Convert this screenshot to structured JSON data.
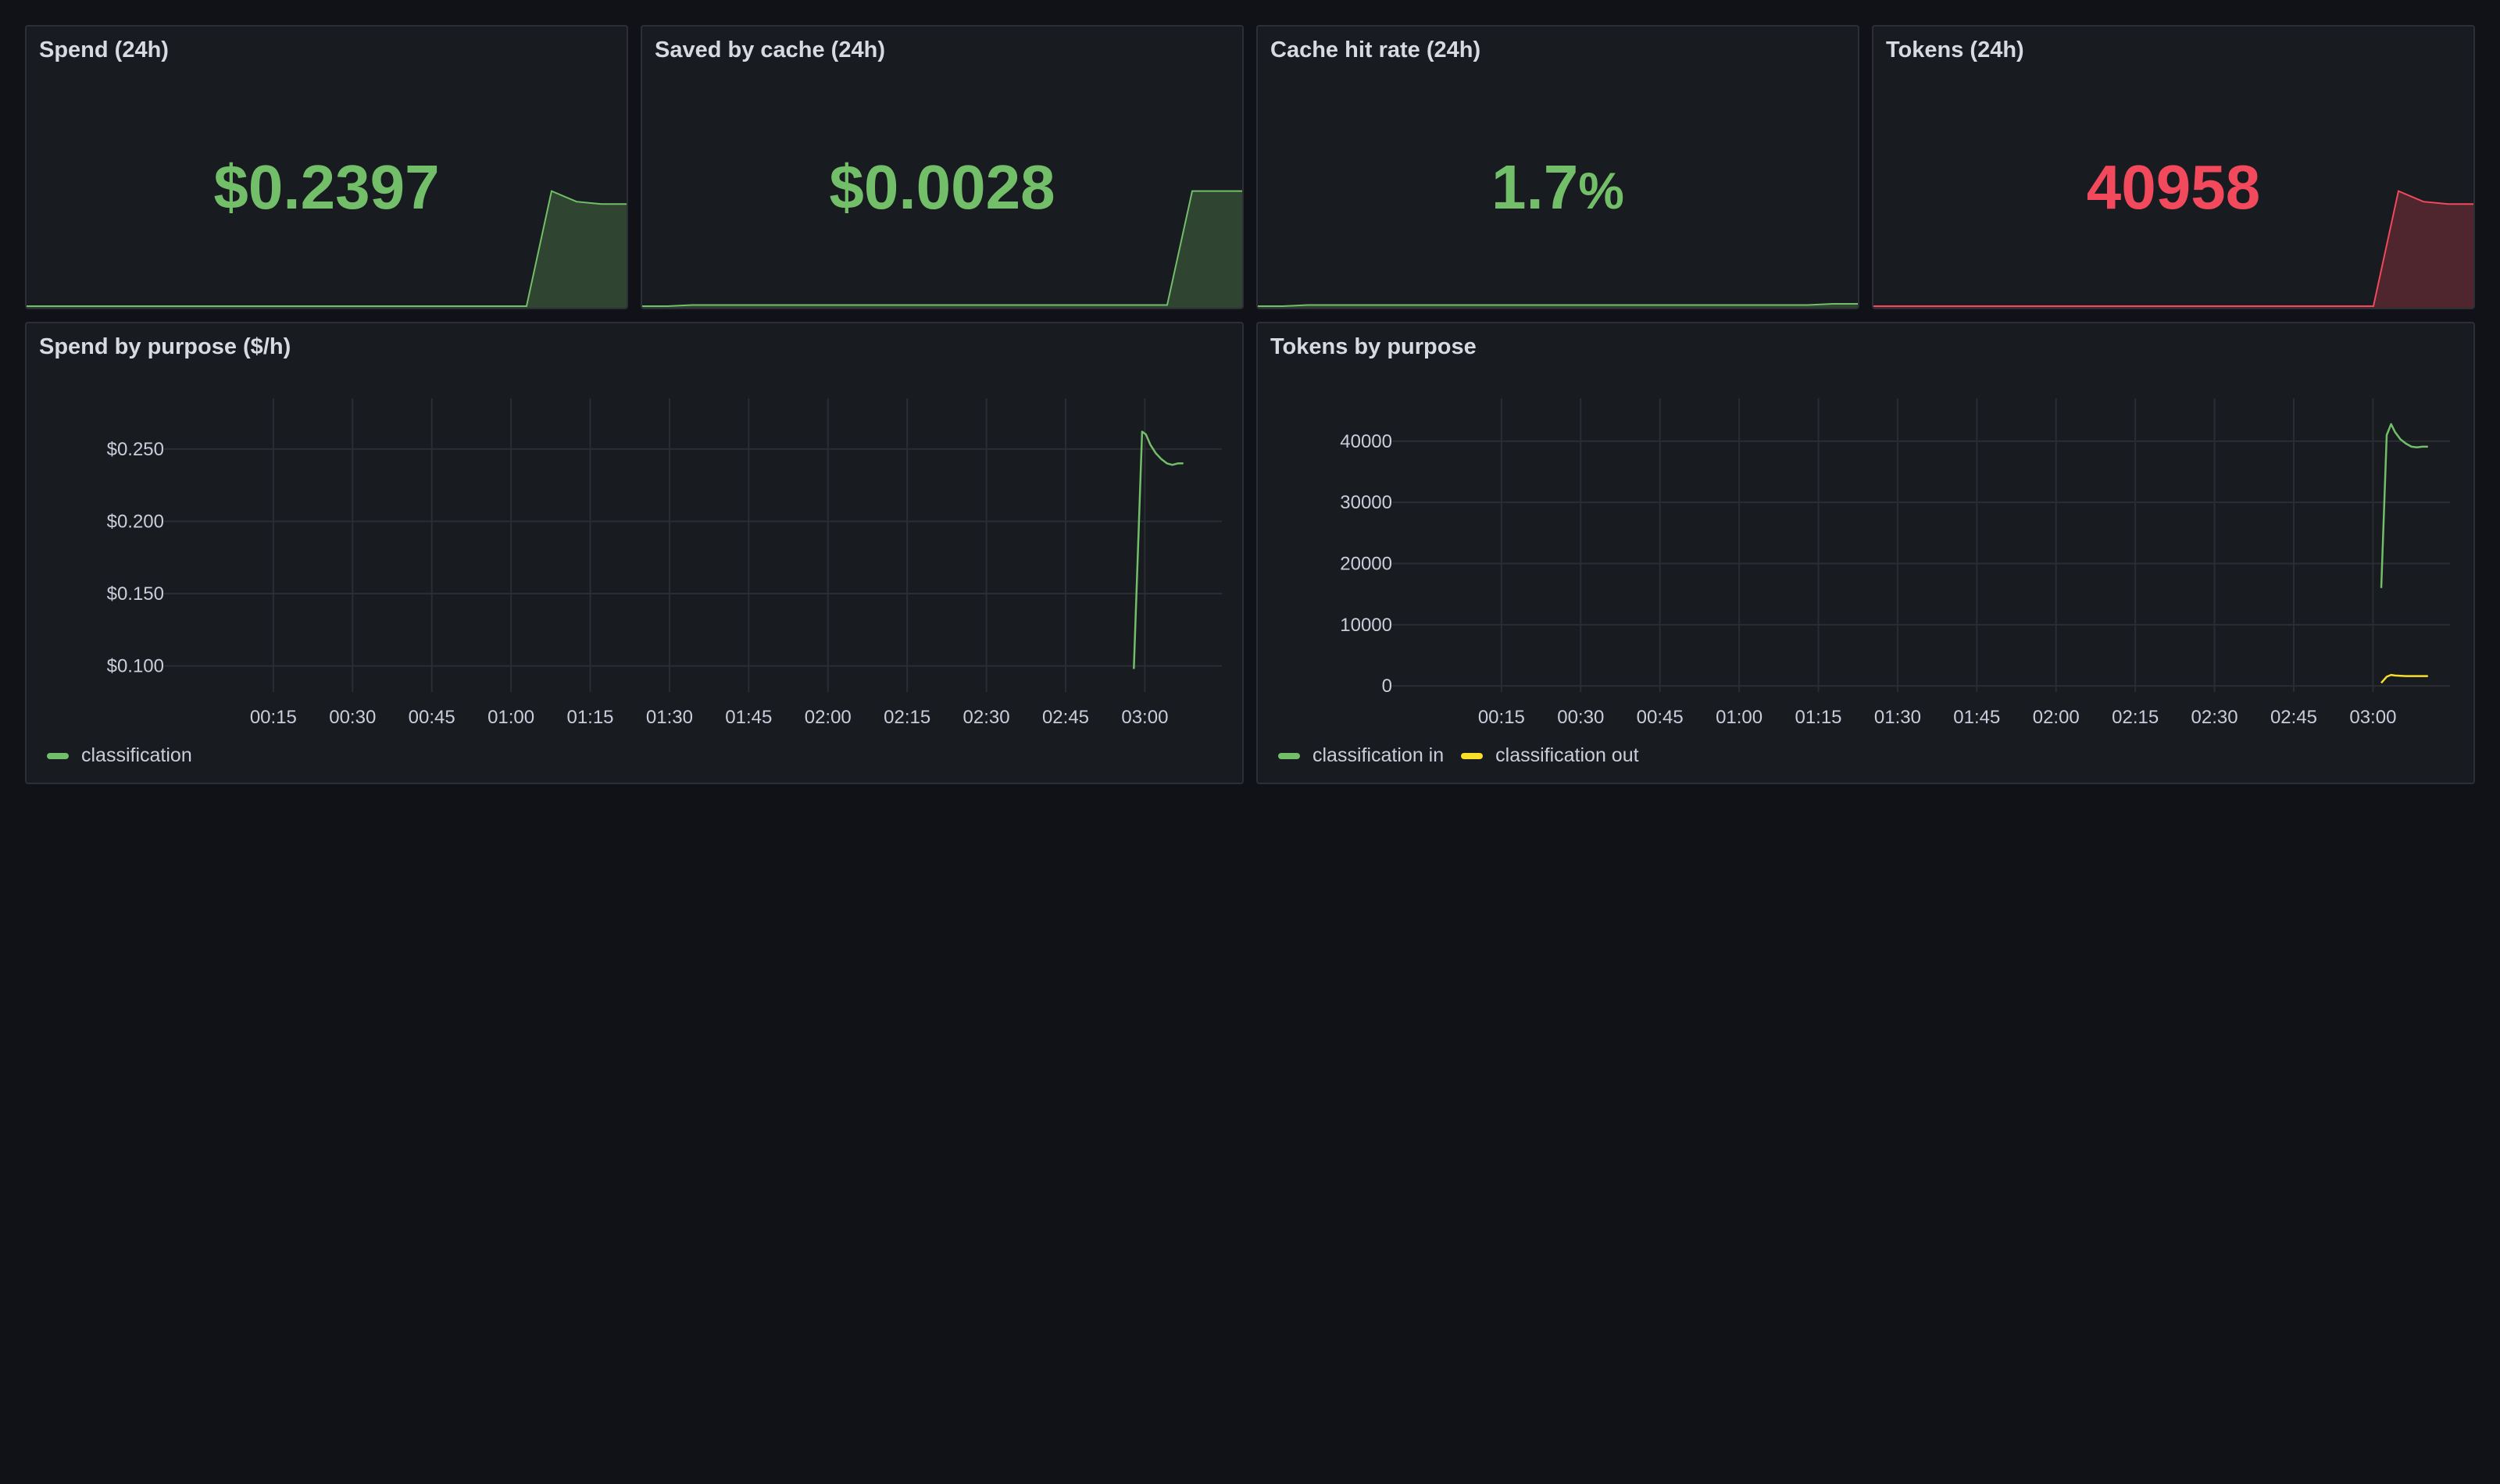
{
  "colors": {
    "green": "#73bf69",
    "red": "#f2495c",
    "yellow": "#fade2a",
    "grid": "#2a2d33"
  },
  "stats": [
    {
      "title": "Spend (24h)",
      "value": "$0.2397",
      "unit": "",
      "color": "#73bf69",
      "spark": [
        0,
        0,
        0,
        0,
        0,
        0,
        0,
        0,
        0,
        0,
        0,
        0,
        0,
        0,
        0,
        0,
        0,
        0,
        0,
        0,
        0,
        0.97,
        0.88,
        0.86,
        0.86
      ]
    },
    {
      "title": "Saved by cache (24h)",
      "value": "$0.0028",
      "unit": "",
      "color": "#73bf69",
      "spark": [
        0,
        0,
        0.01,
        0.01,
        0.01,
        0.01,
        0.01,
        0.01,
        0.01,
        0.01,
        0.01,
        0.01,
        0.01,
        0.01,
        0.01,
        0.01,
        0.01,
        0.01,
        0.01,
        0.01,
        0.01,
        0.01,
        0.97,
        0.97,
        0.97
      ]
    },
    {
      "title": "Cache hit rate (24h)",
      "value": "1.7",
      "unit": "%",
      "color": "#73bf69",
      "spark": [
        0,
        0,
        0.01,
        0.01,
        0.01,
        0.01,
        0.01,
        0.01,
        0.01,
        0.01,
        0.01,
        0.01,
        0.01,
        0.01,
        0.01,
        0.01,
        0.01,
        0.01,
        0.01,
        0.01,
        0.01,
        0.01,
        0.01,
        0.02,
        0.02
      ]
    },
    {
      "title": "Tokens (24h)",
      "value": "40958",
      "unit": "",
      "color": "#f2495c",
      "spark": [
        0,
        0,
        0,
        0,
        0,
        0,
        0,
        0,
        0,
        0,
        0,
        0,
        0,
        0,
        0,
        0,
        0,
        0,
        0,
        0,
        0,
        0.97,
        0.88,
        0.86,
        0.86
      ]
    }
  ],
  "chart_data": [
    {
      "type": "line",
      "title": "Spend by purpose ($/h)",
      "x_ticks": [
        "00:15",
        "00:30",
        "00:45",
        "01:00",
        "01:15",
        "01:30",
        "01:45",
        "02:00",
        "02:15",
        "02:30",
        "02:45",
        "03:00"
      ],
      "y_ticks": [
        "$0.250",
        "$0.200",
        "$0.150",
        "$0.100"
      ],
      "y_tick_values": [
        0.25,
        0.2,
        0.15,
        0.1
      ],
      "ylim": [
        0.082,
        0.285
      ],
      "xlim": [
        0,
        188
      ],
      "grid": true,
      "legend_position": "bottom-left",
      "series": [
        {
          "name": "classification",
          "color": "#73bf69",
          "x": [
            172,
            173.5,
            174.2,
            175,
            176,
            177,
            178,
            179,
            180,
            181
          ],
          "y": [
            0.098,
            0.262,
            0.26,
            0.253,
            0.247,
            0.243,
            0.24,
            0.239,
            0.24,
            0.24
          ]
        }
      ]
    },
    {
      "type": "line",
      "title": "Tokens by purpose",
      "x_ticks": [
        "00:15",
        "00:30",
        "00:45",
        "01:00",
        "01:15",
        "01:30",
        "01:45",
        "02:00",
        "02:15",
        "02:30",
        "02:45",
        "03:00"
      ],
      "y_ticks": [
        "40000",
        "30000",
        "20000",
        "10000",
        "0"
      ],
      "y_tick_values": [
        40000,
        30000,
        20000,
        10000,
        0
      ],
      "ylim": [
        -1000,
        47000
      ],
      "xlim": [
        0,
        188
      ],
      "grid": true,
      "legend_position": "bottom-left",
      "series": [
        {
          "name": "classification in",
          "color": "#73bf69",
          "x": [
            175.5,
            176.5,
            177.3,
            178,
            179,
            180,
            181,
            182,
            183,
            184
          ],
          "y": [
            16000,
            41000,
            42800,
            41500,
            40300,
            39600,
            39100,
            39000,
            39100,
            39100
          ]
        },
        {
          "name": "classification out",
          "color": "#fade2a",
          "x": [
            175.5,
            176.5,
            177.3,
            178,
            179,
            180,
            181,
            182,
            183,
            184
          ],
          "y": [
            500,
            1500,
            1800,
            1700,
            1650,
            1600,
            1600,
            1600,
            1600,
            1600
          ]
        }
      ]
    }
  ]
}
